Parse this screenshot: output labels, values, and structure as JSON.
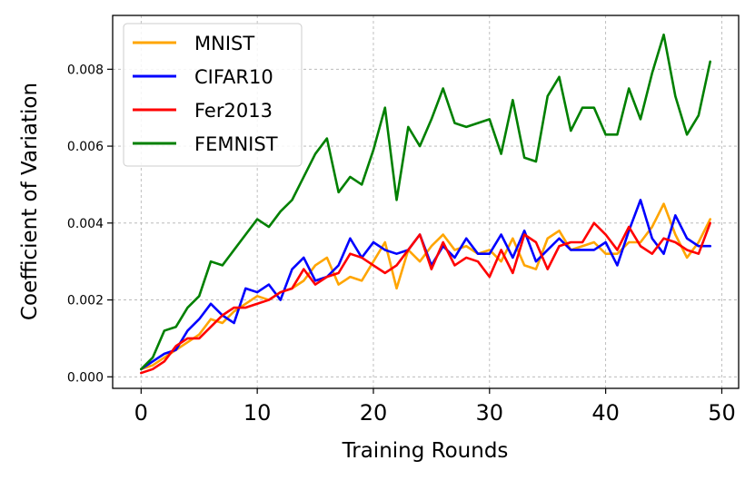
{
  "chart_data": {
    "type": "line",
    "title": "",
    "xlabel": "Training Rounds",
    "ylabel": "Coefficient of Variation",
    "xlim": [
      -2.45,
      51.45
    ],
    "ylim": [
      -0.0003,
      0.0094
    ],
    "xticks": [
      0,
      10,
      20,
      30,
      40,
      50
    ],
    "xtick_labels": [
      "0",
      "10",
      "20",
      "30",
      "40",
      "50"
    ],
    "yticks": [
      0.0,
      0.002,
      0.004,
      0.006,
      0.008
    ],
    "ytick_labels": [
      "0.000",
      "0.002",
      "0.004",
      "0.006",
      "0.008"
    ],
    "grid": true,
    "legend_position": "top-left",
    "x": [
      0,
      1,
      2,
      3,
      4,
      5,
      6,
      7,
      8,
      9,
      10,
      11,
      12,
      13,
      14,
      15,
      16,
      17,
      18,
      19,
      20,
      21,
      22,
      23,
      24,
      25,
      26,
      27,
      28,
      29,
      30,
      31,
      32,
      33,
      34,
      35,
      36,
      37,
      38,
      39,
      40,
      41,
      42,
      43,
      44,
      45,
      46,
      47,
      48,
      49
    ],
    "series": [
      {
        "name": "MNIST",
        "color": "#ffa500",
        "values": [
          0.0002,
          0.0003,
          0.0005,
          0.0007,
          0.0009,
          0.0011,
          0.0015,
          0.0014,
          0.0017,
          0.0019,
          0.0021,
          0.002,
          0.0022,
          0.0023,
          0.0025,
          0.0029,
          0.0031,
          0.0024,
          0.0026,
          0.0025,
          0.003,
          0.0035,
          0.0023,
          0.0033,
          0.003,
          0.0034,
          0.0037,
          0.0033,
          0.0034,
          0.0032,
          0.0033,
          0.003,
          0.0036,
          0.0029,
          0.0028,
          0.0036,
          0.0038,
          0.0033,
          0.0034,
          0.0035,
          0.0032,
          0.0032,
          0.0035,
          0.0035,
          0.0039,
          0.0045,
          0.0037,
          0.0031,
          0.0035,
          0.0041
        ]
      },
      {
        "name": "CIFAR10",
        "color": "#0000ff",
        "values": [
          0.0002,
          0.0004,
          0.0006,
          0.0007,
          0.0012,
          0.0015,
          0.0019,
          0.0016,
          0.0014,
          0.0023,
          0.0022,
          0.0024,
          0.002,
          0.0028,
          0.0031,
          0.0025,
          0.0026,
          0.0029,
          0.0036,
          0.0031,
          0.0035,
          0.0033,
          0.0032,
          0.0033,
          0.0037,
          0.0029,
          0.0034,
          0.0031,
          0.0036,
          0.0032,
          0.0032,
          0.0037,
          0.0031,
          0.0038,
          0.003,
          0.0033,
          0.0036,
          0.0033,
          0.0033,
          0.0033,
          0.0035,
          0.0029,
          0.0038,
          0.0046,
          0.0036,
          0.0032,
          0.0042,
          0.0036,
          0.0034,
          0.0034
        ]
      },
      {
        "name": "Fer2013",
        "color": "#ff0000",
        "values": [
          0.0001,
          0.0002,
          0.0004,
          0.0008,
          0.001,
          0.001,
          0.0013,
          0.0016,
          0.0018,
          0.0018,
          0.0019,
          0.002,
          0.0022,
          0.0023,
          0.0028,
          0.0024,
          0.0026,
          0.0027,
          0.0032,
          0.0031,
          0.0029,
          0.0027,
          0.0029,
          0.0033,
          0.0037,
          0.0028,
          0.0035,
          0.0029,
          0.0031,
          0.003,
          0.0026,
          0.0033,
          0.0027,
          0.0037,
          0.0035,
          0.0028,
          0.0034,
          0.0035,
          0.0035,
          0.004,
          0.0037,
          0.0033,
          0.0039,
          0.0034,
          0.0032,
          0.0036,
          0.0035,
          0.0033,
          0.0032,
          0.004
        ]
      },
      {
        "name": "FEMNIST",
        "color": "#008000",
        "values": [
          0.0002,
          0.0005,
          0.0012,
          0.0013,
          0.0018,
          0.0021,
          0.003,
          0.0029,
          0.0033,
          0.0037,
          0.0041,
          0.0039,
          0.0043,
          0.0046,
          0.0052,
          0.0058,
          0.0062,
          0.0048,
          0.0052,
          0.005,
          0.0059,
          0.007,
          0.0046,
          0.0065,
          0.006,
          0.0067,
          0.0075,
          0.0066,
          0.0065,
          0.0066,
          0.0067,
          0.0058,
          0.0072,
          0.0057,
          0.0056,
          0.0073,
          0.0078,
          0.0064,
          0.007,
          0.007,
          0.0063,
          0.0063,
          0.0075,
          0.0067,
          0.0079,
          0.0089,
          0.0073,
          0.0063,
          0.0068,
          0.0082
        ]
      }
    ]
  }
}
